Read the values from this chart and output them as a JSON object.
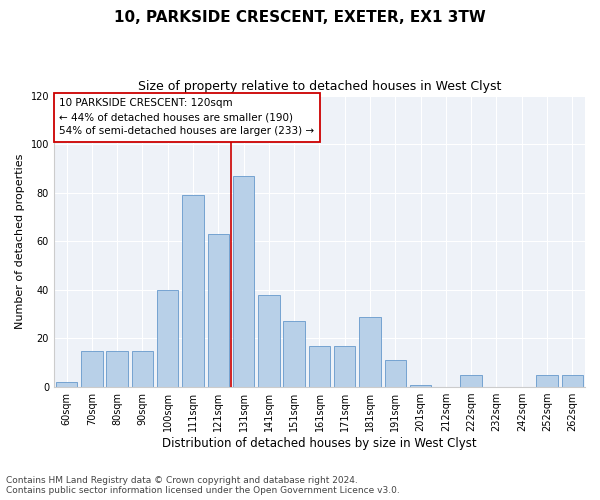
{
  "title1": "10, PARKSIDE CRESCENT, EXETER, EX1 3TW",
  "title2": "Size of property relative to detached houses in West Clyst",
  "xlabel": "Distribution of detached houses by size in West Clyst",
  "ylabel": "Number of detached properties",
  "categories": [
    "60sqm",
    "70sqm",
    "80sqm",
    "90sqm",
    "100sqm",
    "111sqm",
    "121sqm",
    "131sqm",
    "141sqm",
    "151sqm",
    "161sqm",
    "171sqm",
    "181sqm",
    "191sqm",
    "201sqm",
    "212sqm",
    "222sqm",
    "232sqm",
    "242sqm",
    "252sqm",
    "262sqm"
  ],
  "values": [
    2,
    15,
    15,
    15,
    40,
    79,
    63,
    87,
    38,
    27,
    17,
    17,
    29,
    11,
    1,
    0,
    5,
    0,
    0,
    5,
    5
  ],
  "bar_color": "#b8d0e8",
  "bar_edge_color": "#6699cc",
  "reference_line_x": 6.5,
  "reference_line_color": "#cc0000",
  "annotation_line1": "10 PARKSIDE CRESCENT: 120sqm",
  "annotation_line2": "← 44% of detached houses are smaller (190)",
  "annotation_line3": "54% of semi-detached houses are larger (233) →",
  "annotation_box_color": "#ffffff",
  "annotation_box_edge_color": "#cc0000",
  "ylim": [
    0,
    120
  ],
  "yticks": [
    0,
    20,
    40,
    60,
    80,
    100,
    120
  ],
  "background_color": "#eef2f8",
  "footer1": "Contains HM Land Registry data © Crown copyright and database right 2024.",
  "footer2": "Contains public sector information licensed under the Open Government Licence v3.0.",
  "title1_fontsize": 11,
  "title2_fontsize": 9,
  "xlabel_fontsize": 8.5,
  "ylabel_fontsize": 8,
  "tick_fontsize": 7,
  "annotation_fontsize": 7.5,
  "footer_fontsize": 6.5
}
